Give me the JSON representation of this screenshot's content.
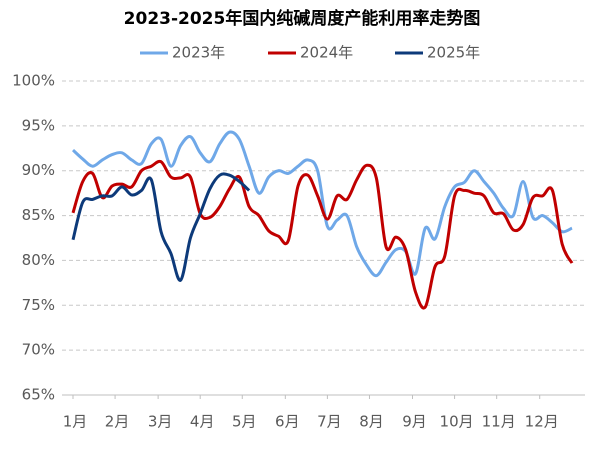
{
  "chart_data": {
    "type": "line",
    "title": "2023-2025年国内纯碱周度产能利用率走势图",
    "x": [
      1,
      2,
      3,
      4,
      5,
      6,
      7,
      8,
      9,
      10,
      11,
      12,
      13,
      14,
      15,
      16,
      17,
      18,
      19,
      20,
      21,
      22,
      23,
      24,
      25,
      26,
      27,
      28,
      29,
      30,
      31,
      32,
      33,
      34,
      35,
      36,
      37,
      38,
      39,
      40,
      41,
      42,
      43,
      44,
      45,
      46,
      47,
      48,
      49,
      50,
      51,
      52
    ],
    "xlim": [
      1,
      52
    ],
    "xticks": [
      {
        "value": 1,
        "label": "1月"
      },
      {
        "value": 5.3,
        "label": "2月"
      },
      {
        "value": 9.7,
        "label": "3月"
      },
      {
        "value": 14,
        "label": "4月"
      },
      {
        "value": 18.3,
        "label": "5月"
      },
      {
        "value": 22.7,
        "label": "6月"
      },
      {
        "value": 27,
        "label": "7月"
      },
      {
        "value": 31.3,
        "label": "8月"
      },
      {
        "value": 35.7,
        "label": "9月"
      },
      {
        "value": 40,
        "label": "10月"
      },
      {
        "value": 44.3,
        "label": "11月"
      },
      {
        "value": 48.7,
        "label": "12月"
      }
    ],
    "ylim": [
      65,
      100
    ],
    "yticks": [
      {
        "value": 65,
        "label": "65%"
      },
      {
        "value": 70,
        "label": "70%"
      },
      {
        "value": 75,
        "label": "75%"
      },
      {
        "value": 80,
        "label": "80%"
      },
      {
        "value": 85,
        "label": "85%"
      },
      {
        "value": 90,
        "label": "90%"
      },
      {
        "value": 95,
        "label": "95%"
      },
      {
        "value": 100,
        "label": "100%"
      }
    ],
    "grid": true,
    "legend": "top",
    "series": [
      {
        "name": "2023年",
        "color": "#6fa8e8",
        "values": [
          92.3,
          91.3,
          90.5,
          91.2,
          91.8,
          92.0,
          91.2,
          90.8,
          93.0,
          93.5,
          90.5,
          92.8,
          93.8,
          92.0,
          91.0,
          93.0,
          94.3,
          93.5,
          90.5,
          87.5,
          89.3,
          90.0,
          89.7,
          90.5,
          91.2,
          90.0,
          83.8,
          84.5,
          85.0,
          81.5,
          79.5,
          78.3,
          79.8,
          81.2,
          81.0,
          78.5,
          83.6,
          82.4,
          86.0,
          88.2,
          88.7,
          90.0,
          88.8,
          87.5,
          85.8,
          85.0,
          88.8,
          84.8,
          85.0,
          84.2,
          83.2,
          83.6
        ]
      },
      {
        "name": "2024年",
        "color": "#c00000",
        "values": [
          85.3,
          88.8,
          89.7,
          87.0,
          88.3,
          88.5,
          88.2,
          90.0,
          90.5,
          91.0,
          89.3,
          89.2,
          89.3,
          85.2,
          84.8,
          86.0,
          88.0,
          89.3,
          86.0,
          85.0,
          83.3,
          82.7,
          82.2,
          88.3,
          89.5,
          87.2,
          84.6,
          87.2,
          86.8,
          89.0,
          90.6,
          89.2,
          81.5,
          82.6,
          81.2,
          76.5,
          74.8,
          79.3,
          80.5,
          87.2,
          87.8,
          87.5,
          87.2,
          85.3,
          85.2,
          83.4,
          84.0,
          87.0,
          87.2,
          87.8,
          81.8,
          79.7
        ]
      },
      {
        "name": "2025年",
        "color": "#0d3a7a",
        "values": [
          82.3,
          86.5,
          86.8,
          87.2,
          87.2,
          88.2,
          87.3,
          87.8,
          89.0,
          83.2,
          80.8,
          77.8,
          82.5,
          85.2,
          88.0,
          89.5,
          89.5,
          88.8,
          87.8,
          null,
          null,
          null,
          null,
          null,
          null,
          null,
          null,
          null,
          null,
          null,
          null,
          null,
          null,
          null,
          null,
          null,
          null,
          null,
          null,
          null,
          null,
          null,
          null,
          null,
          null,
          null,
          null,
          null,
          null,
          null,
          null,
          null
        ]
      }
    ]
  }
}
